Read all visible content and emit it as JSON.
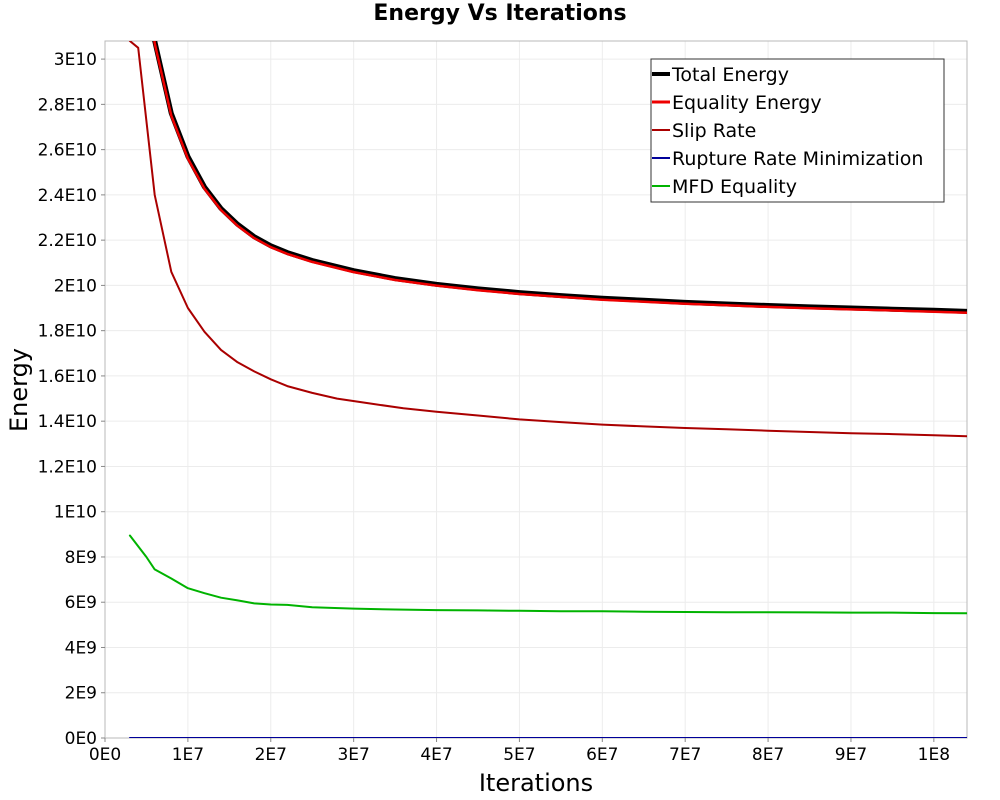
{
  "chart_data": {
    "type": "line",
    "title": "Energy Vs Iterations",
    "xlabel": "Iterations",
    "ylabel": "Energy",
    "xlim": [
      0,
      104000000
    ],
    "ylim": [
      0,
      30800000000
    ],
    "x_ticks": [
      {
        "value": 0,
        "label": "0E0"
      },
      {
        "value": 10000000,
        "label": "1E7"
      },
      {
        "value": 20000000,
        "label": "2E7"
      },
      {
        "value": 30000000,
        "label": "3E7"
      },
      {
        "value": 40000000,
        "label": "4E7"
      },
      {
        "value": 50000000,
        "label": "5E7"
      },
      {
        "value": 60000000,
        "label": "6E7"
      },
      {
        "value": 70000000,
        "label": "7E7"
      },
      {
        "value": 80000000,
        "label": "8E7"
      },
      {
        "value": 90000000,
        "label": "9E7"
      },
      {
        "value": 100000000,
        "label": "1E8"
      }
    ],
    "y_ticks": [
      {
        "value": 0,
        "label": "0E0"
      },
      {
        "value": 2000000000,
        "label": "2E9"
      },
      {
        "value": 4000000000,
        "label": "4E9"
      },
      {
        "value": 6000000000,
        "label": "6E9"
      },
      {
        "value": 8000000000,
        "label": "8E9"
      },
      {
        "value": 10000000000,
        "label": "1E10"
      },
      {
        "value": 12000000000,
        "label": "1.2E10"
      },
      {
        "value": 14000000000,
        "label": "1.4E10"
      },
      {
        "value": 16000000000,
        "label": "1.6E10"
      },
      {
        "value": 18000000000,
        "label": "1.8E10"
      },
      {
        "value": 20000000000,
        "label": "2E10"
      },
      {
        "value": 22000000000,
        "label": "2.2E10"
      },
      {
        "value": 24000000000,
        "label": "2.4E10"
      },
      {
        "value": 26000000000,
        "label": "2.6E10"
      },
      {
        "value": 28000000000,
        "label": "2.8E10"
      },
      {
        "value": 30000000000,
        "label": "3E10"
      }
    ],
    "grid": true,
    "legend_position": "top-right",
    "series": [
      {
        "name": "Total Energy",
        "color": "#000000",
        "x": [
          4500000,
          6000000,
          8000000,
          10000000,
          12000000,
          14000000,
          16000000,
          18000000,
          20000000,
          22000000,
          25000000,
          30000000,
          35000000,
          40000000,
          45000000,
          50000000,
          55000000,
          60000000,
          65000000,
          70000000,
          75000000,
          80000000,
          85000000,
          90000000,
          95000000,
          100000000,
          104000000
        ],
        "values": [
          36000000000,
          30800000000,
          27600000000,
          25700000000,
          24350000000,
          23400000000,
          22700000000,
          22150000000,
          21750000000,
          21450000000,
          21100000000,
          20650000000,
          20300000000,
          20050000000,
          19850000000,
          19680000000,
          19550000000,
          19430000000,
          19340000000,
          19250000000,
          19180000000,
          19110000000,
          19050000000,
          19000000000,
          18950000000,
          18900000000,
          18850000000
        ]
      },
      {
        "name": "Equality Energy",
        "color": "#ee0000",
        "x": [
          4500000,
          6000000,
          8000000,
          10000000,
          12000000,
          14000000,
          16000000,
          18000000,
          20000000,
          22000000,
          25000000,
          30000000,
          35000000,
          40000000,
          45000000,
          50000000,
          55000000,
          60000000,
          65000000,
          70000000,
          75000000,
          80000000,
          85000000,
          90000000,
          95000000,
          100000000,
          104000000
        ],
        "values": [
          35900000000,
          30700000000,
          27500000000,
          25600000000,
          24270000000,
          23330000000,
          22630000000,
          22090000000,
          21690000000,
          21390000000,
          21040000000,
          20590000000,
          20240000000,
          19990000000,
          19790000000,
          19620000000,
          19490000000,
          19370000000,
          19280000000,
          19190000000,
          19120000000,
          19050000000,
          18990000000,
          18940000000,
          18890000000,
          18840000000,
          18790000000
        ]
      },
      {
        "name": "Slip Rate",
        "color": "#aa0000",
        "x": [
          3000000,
          4000000,
          6000000,
          8000000,
          10000000,
          12000000,
          14000000,
          16000000,
          18000000,
          20000000,
          22000000,
          25000000,
          28000000,
          32000000,
          36000000,
          40000000,
          45000000,
          50000000,
          55000000,
          60000000,
          65000000,
          70000000,
          75000000,
          80000000,
          85000000,
          90000000,
          95000000,
          100000000,
          104000000
        ],
        "values": [
          30800000000,
          30500000000,
          24000000000,
          20600000000,
          19000000000,
          17950000000,
          17150000000,
          16600000000,
          16200000000,
          15850000000,
          15550000000,
          15250000000,
          15000000000,
          14780000000,
          14570000000,
          14420000000,
          14250000000,
          14080000000,
          13960000000,
          13850000000,
          13770000000,
          13700000000,
          13640000000,
          13580000000,
          13520000000,
          13470000000,
          13430000000,
          13380000000,
          13330000000
        ]
      },
      {
        "name": "Rupture Rate Minimization",
        "color": "#000099",
        "x": [
          3000000,
          104000000
        ],
        "values": [
          0,
          0
        ]
      },
      {
        "name": "MFD Equality",
        "color": "#00b300",
        "x": [
          3000000,
          5000000,
          6000000,
          8000000,
          10000000,
          12000000,
          14000000,
          16000000,
          18000000,
          20000000,
          22000000,
          25000000,
          30000000,
          35000000,
          40000000,
          45000000,
          50000000,
          55000000,
          60000000,
          65000000,
          70000000,
          75000000,
          80000000,
          85000000,
          90000000,
          95000000,
          100000000,
          104000000
        ],
        "values": [
          8950000000,
          8000000000,
          7450000000,
          7050000000,
          6620000000,
          6400000000,
          6200000000,
          6080000000,
          5950000000,
          5900000000,
          5880000000,
          5780000000,
          5720000000,
          5680000000,
          5650000000,
          5640000000,
          5620000000,
          5600000000,
          5600000000,
          5580000000,
          5570000000,
          5560000000,
          5560000000,
          5550000000,
          5540000000,
          5540000000,
          5520000000,
          5510000000
        ]
      }
    ]
  }
}
